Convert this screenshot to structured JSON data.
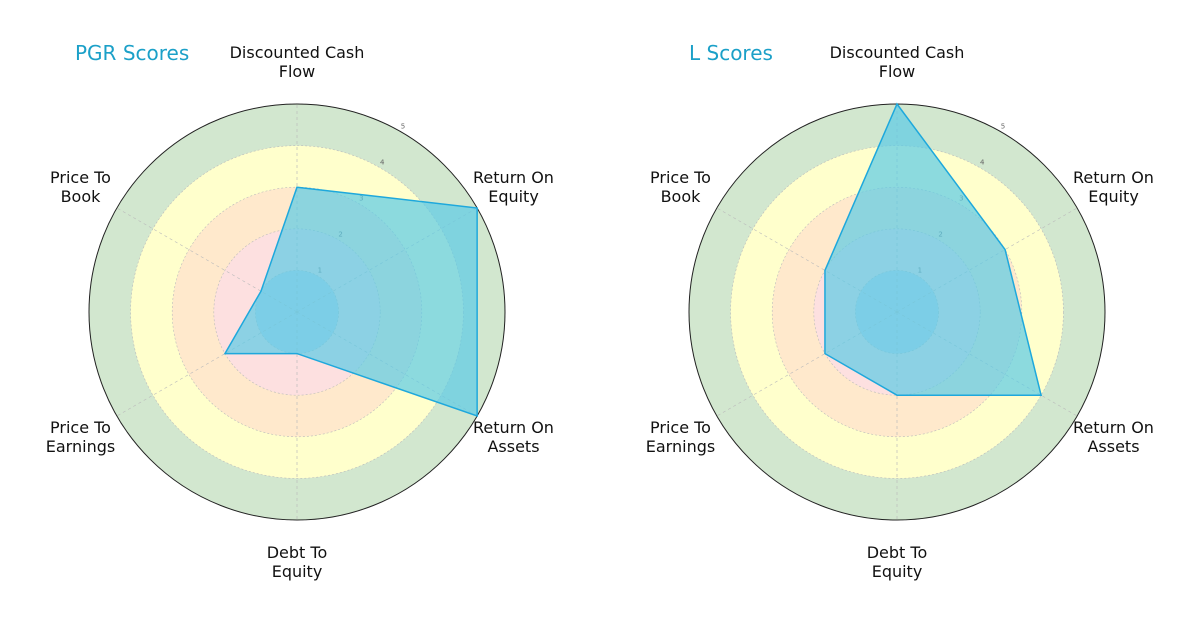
{
  "chart_data": [
    {
      "type": "radar",
      "title": "PGR Scores",
      "categories": [
        "Discounted Cash\nFlow",
        "Return On\nEquity",
        "Return On\nAssets",
        "Debt To\nEquity",
        "Price To\nEarnings",
        "Price To\nBook"
      ],
      "values": [
        3,
        5,
        5,
        1,
        2,
        1
      ],
      "ylim": [
        0,
        5
      ],
      "yticks": [
        1,
        2,
        3,
        4,
        5
      ],
      "color": "#1ea8dc",
      "fill": "#5bcbe6",
      "band_colors": [
        "#c9d7ea",
        "#fde0e0",
        "#ffe9cc",
        "#ffffcc",
        "#d2e7cf"
      ]
    },
    {
      "type": "radar",
      "title": "L Scores",
      "categories": [
        "Discounted Cash\nFlow",
        "Return On\nEquity",
        "Return On\nAssets",
        "Debt To\nEquity",
        "Price To\nEarnings",
        "Price To\nBook"
      ],
      "values": [
        5,
        3,
        4,
        2,
        2,
        2
      ],
      "ylim": [
        0,
        5
      ],
      "yticks": [
        1,
        2,
        3,
        4,
        5
      ],
      "color": "#1ea8dc",
      "fill": "#5bcbe6",
      "band_colors": [
        "#c9d7ea",
        "#fde0e0",
        "#ffe9cc",
        "#ffffcc",
        "#d2e7cf"
      ]
    }
  ]
}
